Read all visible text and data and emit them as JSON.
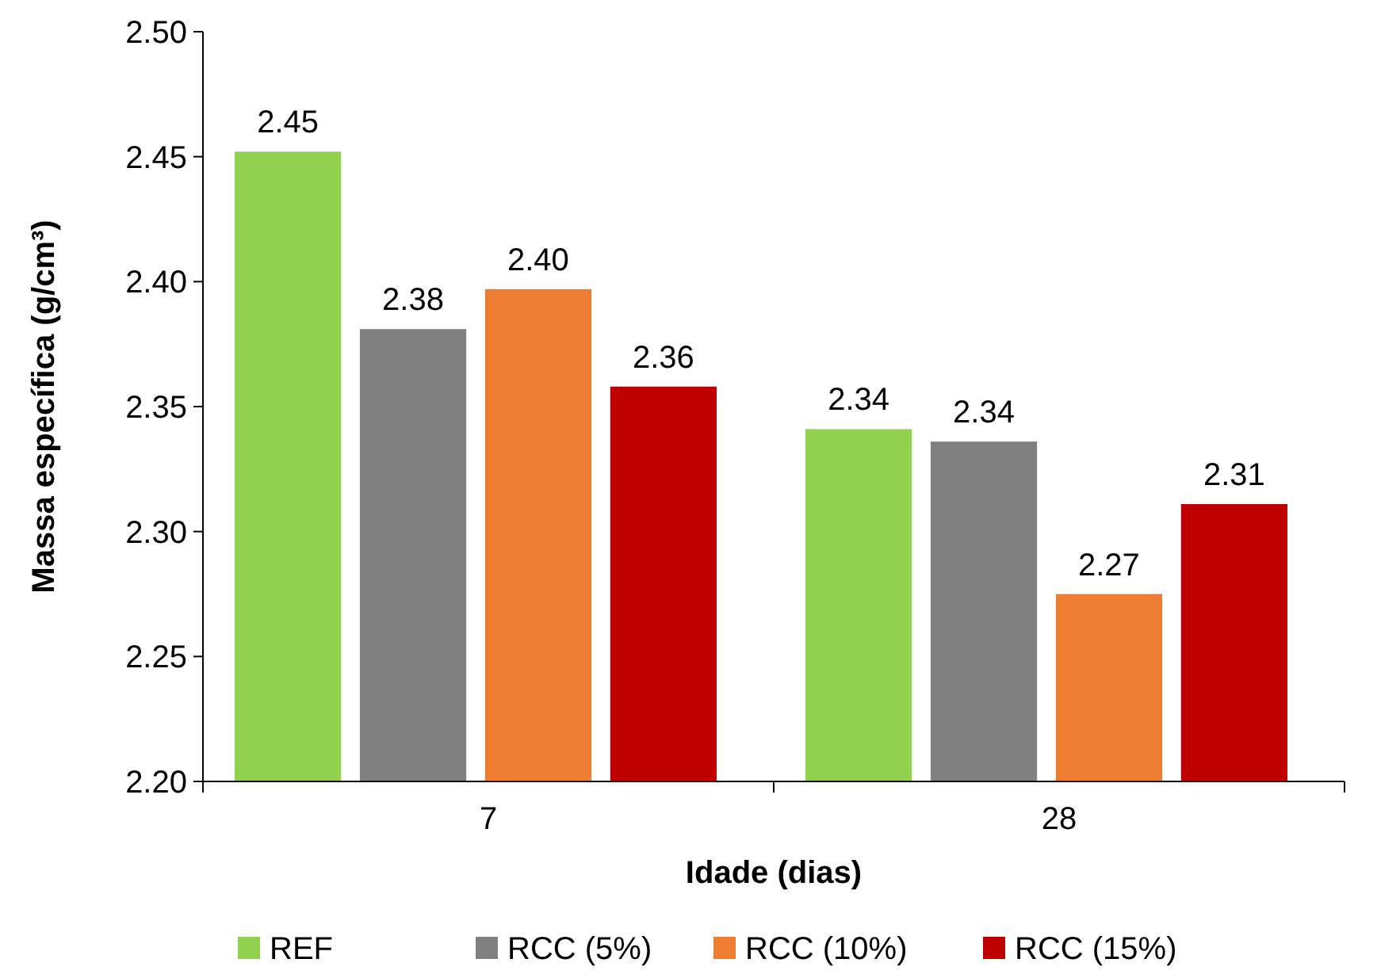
{
  "chart_data": {
    "type": "bar",
    "xlabel": "Idade (dias)",
    "ylabel": "Massa específica (g/cm³)",
    "categories": [
      "7",
      "28"
    ],
    "series": [
      {
        "name": "REF",
        "color": "#92d050",
        "values": [
          2.452,
          2.341
        ],
        "value_labels": [
          "2.45",
          "2.34"
        ]
      },
      {
        "name": "RCC (5%)",
        "color": "#808080",
        "values": [
          2.381,
          2.336
        ],
        "value_labels": [
          "2.38",
          "2.34"
        ]
      },
      {
        "name": "RCC (10%)",
        "color": "#ed7d31",
        "values": [
          2.397,
          2.275
        ],
        "value_labels": [
          "2.40",
          "2.27"
        ]
      },
      {
        "name": "RCC (15%)",
        "color": "#c00000",
        "values": [
          2.358,
          2.311
        ],
        "value_labels": [
          "2.36",
          "2.31"
        ]
      }
    ],
    "ylim": [
      2.2,
      2.5
    ],
    "yticks": [
      {
        "value": 2.2,
        "label": "2.20"
      },
      {
        "value": 2.25,
        "label": "2.25"
      },
      {
        "value": 2.3,
        "label": "2.30"
      },
      {
        "value": 2.35,
        "label": "2.35"
      },
      {
        "value": 2.4,
        "label": "2.40"
      },
      {
        "value": 2.45,
        "label": "2.45"
      },
      {
        "value": 2.5,
        "label": "2.50"
      }
    ],
    "grid": false,
    "legend": "bottom"
  }
}
